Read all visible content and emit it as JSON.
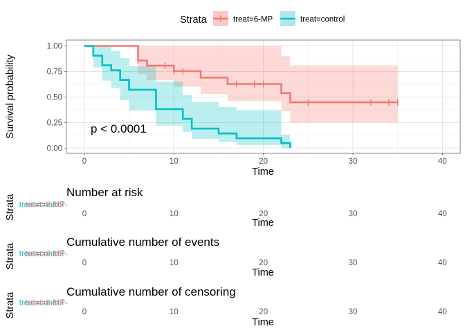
{
  "legend": {
    "title": "Strata",
    "position": "top",
    "entries": [
      {
        "label": "treat=6-MP",
        "color": "#F8766D",
        "fill": "#FDC9C6"
      },
      {
        "label": "treat=control",
        "color": "#00BFC4",
        "fill": "#B3E6E8"
      }
    ]
  },
  "chart_data": [
    {
      "type": "line",
      "subtype": "kaplan-meier step",
      "xlabel": "Time",
      "ylabel": "Survival probability",
      "xlim": [
        0,
        40
      ],
      "ylim": [
        0,
        1
      ],
      "xticks": [
        "0",
        "10",
        "20",
        "30",
        "40"
      ],
      "yticks": [
        "0.00",
        "0.25",
        "0.50",
        "0.75",
        "1.00"
      ],
      "grid": true,
      "annotation": "p < 0.0001",
      "series": [
        {
          "name": "treat=6-MP",
          "color": "#F8766D",
          "steps": [
            [
              0,
              1.0
            ],
            [
              6,
              0.857
            ],
            [
              7,
              0.807
            ],
            [
              10,
              0.753
            ],
            [
              13,
              0.69
            ],
            [
              16,
              0.627
            ],
            [
              22,
              0.538
            ],
            [
              23,
              0.448
            ],
            [
              35,
              0.448
            ]
          ],
          "ci": [
            [
              0,
              1.0,
              1.0
            ],
            [
              6,
              1.0,
              0.727
            ],
            [
              7,
              1.0,
              0.665
            ],
            [
              10,
              1.0,
              0.601
            ],
            [
              13,
              1.0,
              0.53
            ],
            [
              16,
              1.0,
              0.461
            ],
            [
              22,
              0.9,
              0.36
            ],
            [
              23,
              0.81,
              0.25
            ],
            [
              35,
              0.81,
              0.25
            ]
          ],
          "censored": [
            6,
            9,
            10,
            11,
            17,
            19,
            20,
            25,
            32,
            34,
            35
          ]
        },
        {
          "name": "treat=control",
          "color": "#00BFC4",
          "steps": [
            [
              0,
              1.0
            ],
            [
              1,
              0.905
            ],
            [
              2,
              0.81
            ],
            [
              3,
              0.762
            ],
            [
              4,
              0.667
            ],
            [
              5,
              0.571
            ],
            [
              8,
              0.381
            ],
            [
              11,
              0.286
            ],
            [
              12,
              0.19
            ],
            [
              15,
              0.143
            ],
            [
              17,
              0.095
            ],
            [
              22,
              0.048
            ],
            [
              23,
              0.0
            ]
          ],
          "ci": [
            [
              0,
              1.0,
              1.0
            ],
            [
              1,
              1.0,
              0.79
            ],
            [
              2,
              1.0,
              0.66
            ],
            [
              3,
              0.95,
              0.59
            ],
            [
              4,
              0.88,
              0.47
            ],
            [
              5,
              0.8,
              0.37
            ],
            [
              8,
              0.65,
              0.22
            ],
            [
              11,
              0.52,
              0.16
            ],
            [
              12,
              0.45,
              0.09
            ],
            [
              15,
              0.4,
              0.06
            ],
            [
              17,
              0.37,
              0.03
            ],
            [
              22,
              0.13,
              0.0
            ],
            [
              23,
              0.13,
              0.0
            ]
          ],
          "censored": []
        }
      ]
    },
    {
      "type": "table",
      "title": "Number at risk",
      "xlabel": "Time",
      "ylabel": "Strata",
      "xlim": [
        0,
        40
      ],
      "xticks": [
        "0",
        "10",
        "20",
        "30",
        "40"
      ],
      "rows": [
        "treat=6-MP",
        "treat=control"
      ]
    },
    {
      "type": "table",
      "title": "Cumulative number of events",
      "xlabel": "Time",
      "ylabel": "Strata",
      "xlim": [
        0,
        40
      ],
      "xticks": [
        "0",
        "10",
        "20",
        "30",
        "40"
      ],
      "rows": [
        "treat=6-MP",
        "treat=control"
      ]
    },
    {
      "type": "table",
      "title": "Cumulative number of censoring",
      "xlabel": "Time",
      "ylabel": "Strata",
      "xlim": [
        0,
        40
      ],
      "xticks": [
        "0",
        "10",
        "20",
        "30",
        "40"
      ],
      "rows": [
        "treat=6-MP",
        "treat=control"
      ]
    }
  ]
}
